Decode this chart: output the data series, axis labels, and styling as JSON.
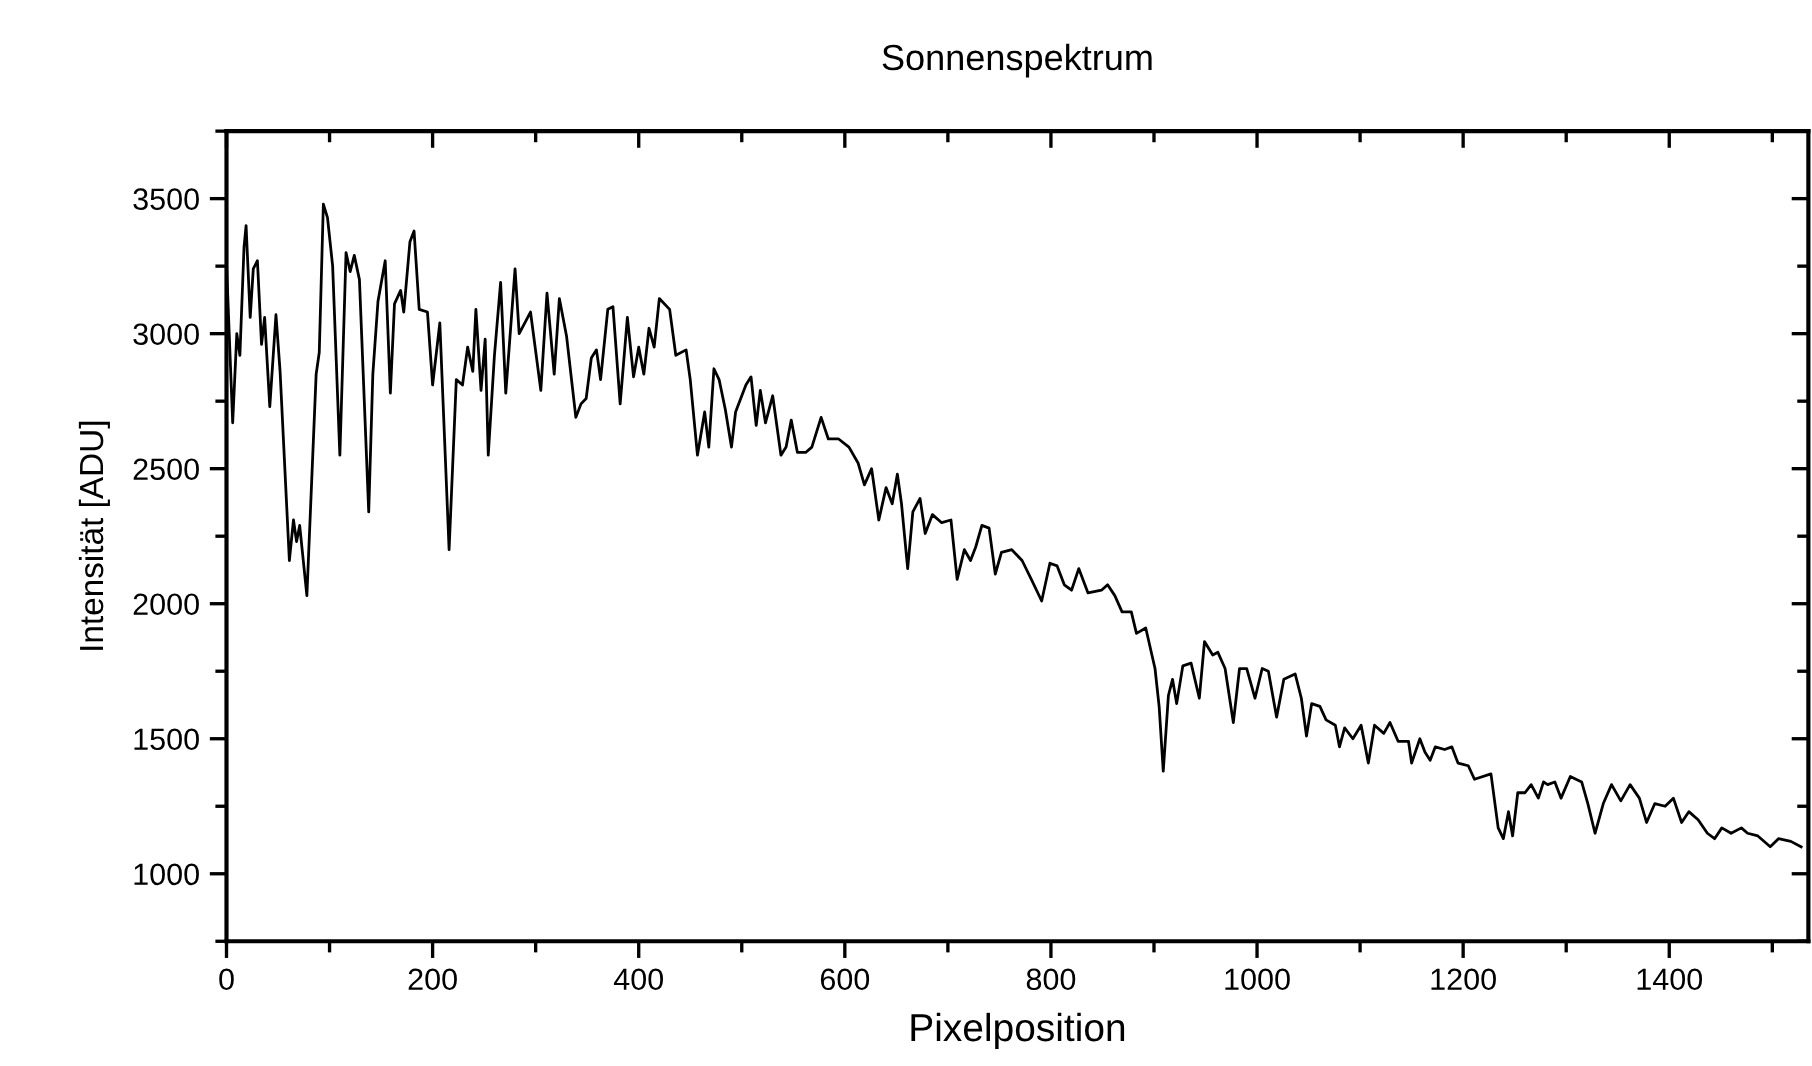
{
  "chart_data": {
    "type": "line",
    "title": "Sonnenspektrum",
    "xlabel": "Pixelposition",
    "ylabel": "Intensität [ADU]",
    "xlim": [
      0,
      1535
    ],
    "ylim": [
      750,
      3750
    ],
    "xticks": [
      0,
      200,
      400,
      600,
      800,
      1000,
      1200,
      1400
    ],
    "yticks": [
      1000,
      1500,
      2000,
      2500,
      3000,
      3500
    ],
    "grid": false,
    "series": [
      {
        "color": "#000000",
        "x": [
          0,
          6,
          10,
          13,
          17,
          19,
          23,
          26,
          30,
          34,
          37,
          42,
          48,
          52,
          61,
          65,
          68,
          71,
          78,
          87,
          90,
          94,
          98,
          103,
          110,
          116,
          120,
          124,
          129,
          138,
          142,
          147,
          154,
          159,
          163,
          169,
          172,
          178,
          182,
          187,
          195,
          200,
          207,
          216,
          223,
          229,
          234,
          239,
          242,
          247,
          251,
          254,
          260,
          266,
          271,
          280,
          284,
          295,
          305,
          311,
          318,
          323,
          330,
          339,
          344,
          349,
          354,
          359,
          363,
          370,
          375,
          382,
          389,
          395,
          400,
          405,
          410,
          415,
          420,
          430,
          436,
          446,
          450,
          457,
          464,
          468,
          473,
          478,
          484,
          490,
          494,
          504,
          509,
          514,
          518,
          523,
          530,
          538,
          543,
          548,
          554,
          562,
          568,
          577,
          584,
          594,
          604,
          613,
          619,
          626,
          633,
          640,
          646,
          651,
          655,
          661,
          666,
          673,
          678,
          685,
          694,
          703,
          709,
          716,
          722,
          727,
          733,
          740,
          746,
          752,
          762,
          772,
          781,
          791,
          799,
          806,
          813,
          820,
          827,
          836,
          849,
          855,
          862,
          869,
          878,
          883,
          892,
          901,
          905,
          909,
          914,
          918,
          922,
          928,
          936,
          944,
          949,
          957,
          962,
          969,
          977,
          983,
          990,
          998,
          1005,
          1011,
          1019,
          1026,
          1037,
          1043,
          1048,
          1053,
          1061,
          1067,
          1076,
          1080,
          1085,
          1093,
          1101,
          1108,
          1114,
          1123,
          1129,
          1137,
          1147,
          1150,
          1158,
          1163,
          1168,
          1173,
          1182,
          1189,
          1195,
          1205,
          1211,
          1227,
          1234,
          1239,
          1244,
          1248,
          1253,
          1260,
          1266,
          1273,
          1278,
          1282,
          1289,
          1295,
          1304,
          1315,
          1321,
          1328,
          1336,
          1344,
          1353,
          1362,
          1371,
          1378,
          1386,
          1396,
          1404,
          1412,
          1419,
          1428,
          1437,
          1444,
          1451,
          1460,
          1470,
          1476,
          1486,
          1498,
          1506,
          1518,
          1528
        ],
        "values": [
          3260,
          2670,
          3000,
          2920,
          3320,
          3400,
          3060,
          3240,
          3270,
          2960,
          3060,
          2730,
          3070,
          2860,
          2160,
          2310,
          2230,
          2290,
          2030,
          2850,
          2930,
          3480,
          3430,
          3250,
          2550,
          3300,
          3230,
          3290,
          3200,
          2340,
          2850,
          3120,
          3270,
          2780,
          3110,
          3160,
          3080,
          3340,
          3380,
          3090,
          3080,
          2810,
          3040,
          2200,
          2830,
          2810,
          2950,
          2860,
          3090,
          2790,
          2980,
          2550,
          2920,
          3190,
          2780,
          3240,
          3000,
          3080,
          2790,
          3150,
          2850,
          3130,
          2990,
          2690,
          2740,
          2760,
          2910,
          2940,
          2830,
          3090,
          3100,
          2740,
          3060,
          2840,
          2950,
          2850,
          3020,
          2950,
          3130,
          3090,
          2920,
          2940,
          2830,
          2550,
          2710,
          2580,
          2870,
          2830,
          2720,
          2580,
          2710,
          2810,
          2840,
          2660,
          2790,
          2670,
          2770,
          2550,
          2580,
          2680,
          2560,
          2560,
          2580,
          2690,
          2610,
          2610,
          2580,
          2520,
          2440,
          2500,
          2310,
          2430,
          2370,
          2480,
          2370,
          2130,
          2340,
          2390,
          2260,
          2330,
          2300,
          2310,
          2090,
          2200,
          2160,
          2210,
          2290,
          2280,
          2110,
          2190,
          2200,
          2160,
          2090,
          2010,
          2150,
          2140,
          2070,
          2050,
          2130,
          2040,
          2050,
          2070,
          2030,
          1970,
          1970,
          1890,
          1910,
          1760,
          1620,
          1380,
          1660,
          1720,
          1630,
          1770,
          1780,
          1650,
          1860,
          1810,
          1820,
          1760,
          1560,
          1760,
          1760,
          1650,
          1760,
          1750,
          1580,
          1720,
          1740,
          1650,
          1510,
          1630,
          1620,
          1570,
          1550,
          1470,
          1540,
          1500,
          1550,
          1410,
          1550,
          1520,
          1560,
          1490,
          1490,
          1410,
          1500,
          1450,
          1420,
          1470,
          1460,
          1470,
          1410,
          1400,
          1350,
          1370,
          1170,
          1130,
          1230,
          1140,
          1300,
          1300,
          1330,
          1280,
          1340,
          1330,
          1340,
          1280,
          1360,
          1340,
          1260,
          1150,
          1260,
          1330,
          1270,
          1330,
          1280,
          1190,
          1260,
          1250,
          1280,
          1190,
          1230,
          1200,
          1150,
          1130,
          1170,
          1150,
          1170,
          1150,
          1140,
          1100,
          1130,
          1120,
          1100
        ]
      }
    ]
  }
}
